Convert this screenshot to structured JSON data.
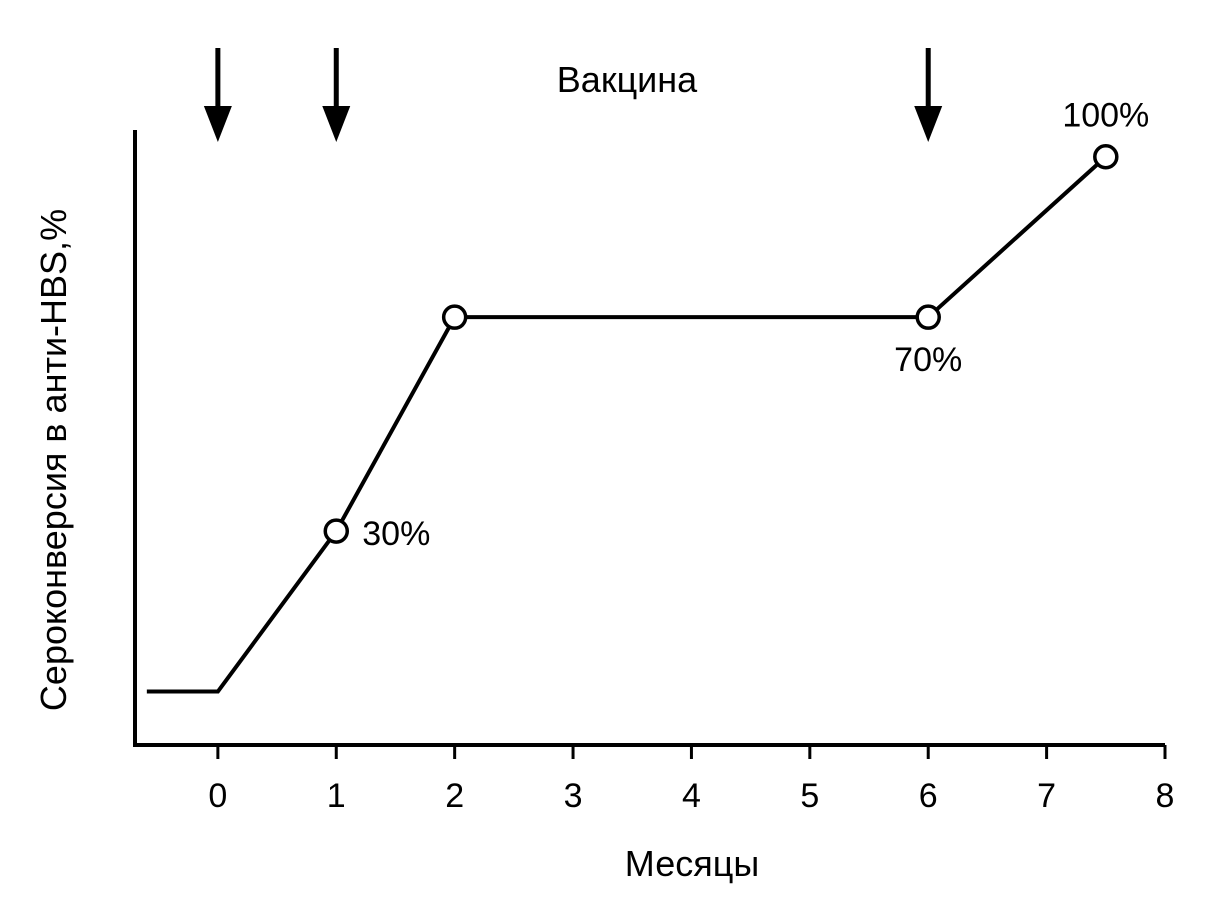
{
  "chart_data": {
    "type": "line",
    "title": "",
    "xlabel": "Месяцы",
    "ylabel": "Сероконверсия в анти-HBS,%",
    "annotation": "Вакцина",
    "xlim": [
      -0.7,
      8
    ],
    "ylim": [
      -10,
      105
    ],
    "ticks": [
      "0",
      "1",
      "2",
      "3",
      "4",
      "5",
      "6",
      "7",
      "8"
    ],
    "tick_positions": [
      0,
      1,
      2,
      3,
      4,
      5,
      6,
      7,
      8
    ],
    "vaccine_doses": [
      0,
      1,
      6
    ],
    "grid": false,
    "series": [
      {
        "points": [
          {
            "x": -0.6,
            "y": 0
          },
          {
            "x": 0,
            "y": 0
          },
          {
            "x": 1,
            "y": 30
          },
          {
            "x": 2,
            "y": 70
          },
          {
            "x": 6,
            "y": 70
          },
          {
            "x": 7.5,
            "y": 100
          }
        ],
        "markers": [
          {
            "x": 1,
            "y": 30,
            "label": "30%",
            "label_pos": "right"
          },
          {
            "x": 2,
            "y": 70,
            "label": "",
            "label_pos": ""
          },
          {
            "x": 6,
            "y": 70,
            "label": "70%",
            "label_pos": "below"
          },
          {
            "x": 7.5,
            "y": 100,
            "label": "100%",
            "label_pos": "above"
          }
        ]
      }
    ]
  }
}
